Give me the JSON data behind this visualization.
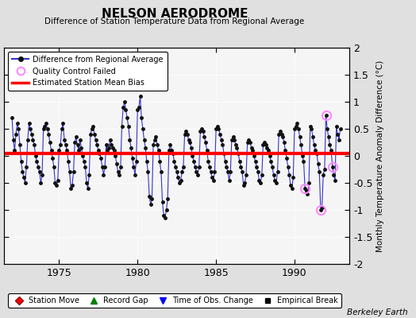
{
  "title": "NELSON AERODROME",
  "subtitle": "Difference of Station Temperature Data from Regional Average",
  "ylabel": "Monthly Temperature Anomaly Difference (°C)",
  "xlabel_note": "Berkeley Earth",
  "ylim": [
    -2,
    2
  ],
  "xlim": [
    1971.5,
    1993.5
  ],
  "xticks": [
    1975,
    1980,
    1985,
    1990
  ],
  "yticks_left": [
    -1.5,
    -1,
    -0.5,
    0,
    0.5,
    1,
    1.5
  ],
  "yticks_right": [
    -2,
    -1.5,
    -1,
    -0.5,
    0,
    0.5,
    1,
    1.5,
    2
  ],
  "bias_value": 0.05,
  "fig_bg_color": "#e0e0e0",
  "plot_bg_color": "#f5f5f5",
  "line_color": "#3333cc",
  "bias_color": "#ff0000",
  "qc_color": "#ff88ff",
  "data": [
    [
      1972.0,
      0.7
    ],
    [
      1972.083,
      0.3
    ],
    [
      1972.167,
      0.1
    ],
    [
      1972.25,
      0.4
    ],
    [
      1972.333,
      0.6
    ],
    [
      1972.417,
      0.5
    ],
    [
      1972.5,
      0.2
    ],
    [
      1972.583,
      -0.1
    ],
    [
      1972.667,
      -0.3
    ],
    [
      1972.75,
      -0.4
    ],
    [
      1972.833,
      -0.5
    ],
    [
      1972.917,
      -0.2
    ],
    [
      1973.0,
      0.3
    ],
    [
      1973.083,
      0.6
    ],
    [
      1973.167,
      0.5
    ],
    [
      1973.25,
      0.4
    ],
    [
      1973.333,
      0.3
    ],
    [
      1973.417,
      0.2
    ],
    [
      1973.5,
      0.0
    ],
    [
      1973.583,
      -0.1
    ],
    [
      1973.667,
      -0.2
    ],
    [
      1973.75,
      -0.3
    ],
    [
      1973.833,
      -0.5
    ],
    [
      1973.917,
      -0.35
    ],
    [
      1974.0,
      0.5
    ],
    [
      1974.083,
      0.55
    ],
    [
      1974.167,
      0.6
    ],
    [
      1974.25,
      0.5
    ],
    [
      1974.333,
      0.4
    ],
    [
      1974.417,
      0.25
    ],
    [
      1974.5,
      0.1
    ],
    [
      1974.583,
      -0.05
    ],
    [
      1974.667,
      -0.2
    ],
    [
      1974.75,
      -0.5
    ],
    [
      1974.833,
      -0.55
    ],
    [
      1974.917,
      -0.45
    ],
    [
      1975.0,
      0.1
    ],
    [
      1975.083,
      0.2
    ],
    [
      1975.167,
      0.5
    ],
    [
      1975.25,
      0.6
    ],
    [
      1975.333,
      0.3
    ],
    [
      1975.417,
      0.2
    ],
    [
      1975.5,
      0.1
    ],
    [
      1975.583,
      -0.1
    ],
    [
      1975.667,
      -0.3
    ],
    [
      1975.75,
      -0.6
    ],
    [
      1975.833,
      -0.55
    ],
    [
      1975.917,
      -0.3
    ],
    [
      1976.0,
      0.25
    ],
    [
      1976.083,
      0.35
    ],
    [
      1976.167,
      0.2
    ],
    [
      1976.25,
      0.1
    ],
    [
      1976.333,
      0.3
    ],
    [
      1976.417,
      0.15
    ],
    [
      1976.5,
      0.0
    ],
    [
      1976.583,
      -0.1
    ],
    [
      1976.667,
      -0.2
    ],
    [
      1976.75,
      -0.5
    ],
    [
      1976.833,
      -0.6
    ],
    [
      1976.917,
      -0.35
    ],
    [
      1977.0,
      0.4
    ],
    [
      1977.083,
      0.5
    ],
    [
      1977.167,
      0.55
    ],
    [
      1977.25,
      0.4
    ],
    [
      1977.333,
      0.3
    ],
    [
      1977.417,
      0.2
    ],
    [
      1977.5,
      0.1
    ],
    [
      1977.583,
      0.05
    ],
    [
      1977.667,
      -0.05
    ],
    [
      1977.75,
      -0.2
    ],
    [
      1977.833,
      -0.35
    ],
    [
      1977.917,
      -0.2
    ],
    [
      1978.0,
      0.2
    ],
    [
      1978.083,
      0.1
    ],
    [
      1978.167,
      0.15
    ],
    [
      1978.25,
      0.3
    ],
    [
      1978.333,
      0.2
    ],
    [
      1978.417,
      0.15
    ],
    [
      1978.5,
      0.1
    ],
    [
      1978.583,
      0.0
    ],
    [
      1978.667,
      -0.15
    ],
    [
      1978.75,
      -0.3
    ],
    [
      1978.833,
      -0.35
    ],
    [
      1978.917,
      -0.2
    ],
    [
      1979.0,
      0.55
    ],
    [
      1979.083,
      0.9
    ],
    [
      1979.167,
      1.0
    ],
    [
      1979.25,
      0.85
    ],
    [
      1979.333,
      0.7
    ],
    [
      1979.417,
      0.55
    ],
    [
      1979.5,
      0.3
    ],
    [
      1979.583,
      0.15
    ],
    [
      1979.667,
      -0.05
    ],
    [
      1979.75,
      -0.2
    ],
    [
      1979.833,
      -0.35
    ],
    [
      1979.917,
      -0.1
    ],
    [
      1980.0,
      0.85
    ],
    [
      1980.083,
      0.9
    ],
    [
      1980.167,
      1.1
    ],
    [
      1980.25,
      0.7
    ],
    [
      1980.333,
      0.5
    ],
    [
      1980.417,
      0.3
    ],
    [
      1980.5,
      0.15
    ],
    [
      1980.583,
      -0.1
    ],
    [
      1980.667,
      -0.3
    ],
    [
      1980.75,
      -0.75
    ],
    [
      1980.833,
      -0.9
    ],
    [
      1980.917,
      -0.8
    ],
    [
      1981.0,
      0.2
    ],
    [
      1981.083,
      0.3
    ],
    [
      1981.167,
      0.35
    ],
    [
      1981.25,
      0.2
    ],
    [
      1981.333,
      0.1
    ],
    [
      1981.417,
      -0.1
    ],
    [
      1981.5,
      -0.3
    ],
    [
      1981.583,
      -0.85
    ],
    [
      1981.667,
      -1.1
    ],
    [
      1981.75,
      -1.15
    ],
    [
      1981.833,
      -1.0
    ],
    [
      1981.917,
      -0.8
    ],
    [
      1982.0,
      0.1
    ],
    [
      1982.083,
      0.2
    ],
    [
      1982.167,
      0.1
    ],
    [
      1982.25,
      0.05
    ],
    [
      1982.333,
      -0.1
    ],
    [
      1982.417,
      -0.2
    ],
    [
      1982.5,
      -0.3
    ],
    [
      1982.583,
      -0.4
    ],
    [
      1982.667,
      -0.5
    ],
    [
      1982.75,
      -0.45
    ],
    [
      1982.833,
      -0.3
    ],
    [
      1982.917,
      -0.2
    ],
    [
      1983.0,
      0.4
    ],
    [
      1983.083,
      0.45
    ],
    [
      1983.167,
      0.4
    ],
    [
      1983.25,
      0.3
    ],
    [
      1983.333,
      0.25
    ],
    [
      1983.417,
      0.15
    ],
    [
      1983.5,
      0.0
    ],
    [
      1983.583,
      -0.1
    ],
    [
      1983.667,
      -0.2
    ],
    [
      1983.75,
      -0.3
    ],
    [
      1983.833,
      -0.35
    ],
    [
      1983.917,
      -0.2
    ],
    [
      1984.0,
      0.45
    ],
    [
      1984.083,
      0.5
    ],
    [
      1984.167,
      0.45
    ],
    [
      1984.25,
      0.35
    ],
    [
      1984.333,
      0.25
    ],
    [
      1984.417,
      0.1
    ],
    [
      1984.5,
      -0.1
    ],
    [
      1984.583,
      -0.2
    ],
    [
      1984.667,
      -0.3
    ],
    [
      1984.75,
      -0.4
    ],
    [
      1984.833,
      -0.45
    ],
    [
      1984.917,
      -0.3
    ],
    [
      1985.0,
      0.5
    ],
    [
      1985.083,
      0.55
    ],
    [
      1985.167,
      0.5
    ],
    [
      1985.25,
      0.4
    ],
    [
      1985.333,
      0.3
    ],
    [
      1985.417,
      0.2
    ],
    [
      1985.5,
      0.05
    ],
    [
      1985.583,
      -0.1
    ],
    [
      1985.667,
      -0.2
    ],
    [
      1985.75,
      -0.3
    ],
    [
      1985.833,
      -0.45
    ],
    [
      1985.917,
      -0.3
    ],
    [
      1986.0,
      0.3
    ],
    [
      1986.083,
      0.35
    ],
    [
      1986.167,
      0.3
    ],
    [
      1986.25,
      0.2
    ],
    [
      1986.333,
      0.15
    ],
    [
      1986.417,
      0.05
    ],
    [
      1986.5,
      -0.1
    ],
    [
      1986.583,
      -0.2
    ],
    [
      1986.667,
      -0.3
    ],
    [
      1986.75,
      -0.55
    ],
    [
      1986.833,
      -0.5
    ],
    [
      1986.917,
      -0.35
    ],
    [
      1987.0,
      0.25
    ],
    [
      1987.083,
      0.3
    ],
    [
      1987.167,
      0.25
    ],
    [
      1987.25,
      0.15
    ],
    [
      1987.333,
      0.1
    ],
    [
      1987.417,
      0.0
    ],
    [
      1987.5,
      -0.1
    ],
    [
      1987.583,
      -0.2
    ],
    [
      1987.667,
      -0.3
    ],
    [
      1987.75,
      -0.45
    ],
    [
      1987.833,
      -0.5
    ],
    [
      1987.917,
      -0.35
    ],
    [
      1988.0,
      0.2
    ],
    [
      1988.083,
      0.25
    ],
    [
      1988.167,
      0.2
    ],
    [
      1988.25,
      0.15
    ],
    [
      1988.333,
      0.1
    ],
    [
      1988.417,
      0.0
    ],
    [
      1988.5,
      -0.1
    ],
    [
      1988.583,
      -0.2
    ],
    [
      1988.667,
      -0.35
    ],
    [
      1988.75,
      -0.45
    ],
    [
      1988.833,
      -0.5
    ],
    [
      1988.917,
      -0.3
    ],
    [
      1989.0,
      0.4
    ],
    [
      1989.083,
      0.45
    ],
    [
      1989.167,
      0.4
    ],
    [
      1989.25,
      0.35
    ],
    [
      1989.333,
      0.25
    ],
    [
      1989.417,
      0.1
    ],
    [
      1989.5,
      -0.05
    ],
    [
      1989.583,
      -0.2
    ],
    [
      1989.667,
      -0.35
    ],
    [
      1989.75,
      -0.55
    ],
    [
      1989.833,
      -0.6
    ],
    [
      1989.917,
      -0.4
    ],
    [
      1990.0,
      0.5
    ],
    [
      1990.083,
      0.55
    ],
    [
      1990.167,
      0.6
    ],
    [
      1990.25,
      0.5
    ],
    [
      1990.333,
      0.35
    ],
    [
      1990.417,
      0.2
    ],
    [
      1990.5,
      0.0
    ],
    [
      1990.583,
      -0.1
    ],
    [
      1990.667,
      -0.6
    ],
    [
      1990.75,
      -0.65
    ],
    [
      1990.833,
      -0.7
    ],
    [
      1990.917,
      -0.5
    ],
    [
      1991.0,
      0.55
    ],
    [
      1991.083,
      0.5
    ],
    [
      1991.167,
      0.35
    ],
    [
      1991.25,
      0.2
    ],
    [
      1991.333,
      0.1
    ],
    [
      1991.417,
      0.05
    ],
    [
      1991.5,
      -0.15
    ],
    [
      1991.583,
      -0.3
    ],
    [
      1991.667,
      -1.0
    ],
    [
      1991.75,
      -0.95
    ],
    [
      1991.833,
      -0.35
    ],
    [
      1991.917,
      -0.25
    ],
    [
      1992.0,
      0.75
    ],
    [
      1992.083,
      0.5
    ],
    [
      1992.167,
      0.35
    ],
    [
      1992.25,
      0.2
    ],
    [
      1992.333,
      0.1
    ],
    [
      1992.417,
      -0.2
    ],
    [
      1992.5,
      -0.35
    ],
    [
      1992.583,
      -0.45
    ],
    [
      1992.667,
      0.55
    ],
    [
      1992.75,
      0.4
    ],
    [
      1992.833,
      0.3
    ],
    [
      1992.917,
      0.5
    ]
  ],
  "qc_failed": [
    [
      1990.667,
      -0.6
    ],
    [
      1991.667,
      -1.0
    ],
    [
      1992.0,
      0.75
    ],
    [
      1992.417,
      -0.2
    ]
  ]
}
